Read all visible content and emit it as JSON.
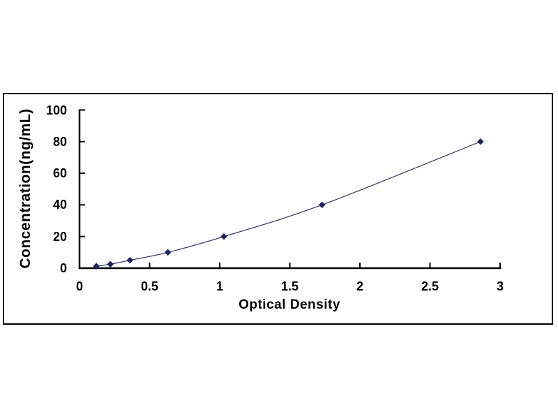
{
  "figure": {
    "background": "#ffffff",
    "frame_border_color": "#000000"
  },
  "chart_data": {
    "type": "scatter",
    "subtype": "elisa-standard-curve",
    "title": "",
    "xlabel": "Optical Density",
    "ylabel": "Concentration(ng/mL)",
    "points": [
      {
        "x": 0.12,
        "y": 1.25
      },
      {
        "x": 0.22,
        "y": 2.5
      },
      {
        "x": 0.36,
        "y": 5
      },
      {
        "x": 0.63,
        "y": 10
      },
      {
        "x": 1.03,
        "y": 20
      },
      {
        "x": 1.73,
        "y": 40
      },
      {
        "x": 2.86,
        "y": 80
      }
    ],
    "xlim": [
      0,
      3
    ],
    "ylim": [
      0,
      100
    ],
    "x_ticks": [
      0,
      0.5,
      1,
      1.5,
      2,
      2.5,
      3
    ],
    "x_tick_labels": [
      "0",
      "0.5",
      "1",
      "1.5",
      "2",
      "2.5",
      "3"
    ],
    "y_ticks": [
      0,
      20,
      40,
      60,
      80,
      100
    ],
    "y_tick_labels": [
      "0",
      "20",
      "40",
      "60",
      "80",
      "100"
    ],
    "grid": false,
    "legend": "none",
    "line": {
      "color": "#3a4070",
      "width": 1.3,
      "smooth": true
    },
    "marker": {
      "shape": "diamond",
      "color": "#1c2460",
      "size": 9
    },
    "axis_color": "#000000",
    "tick_label_color": "#000000"
  }
}
